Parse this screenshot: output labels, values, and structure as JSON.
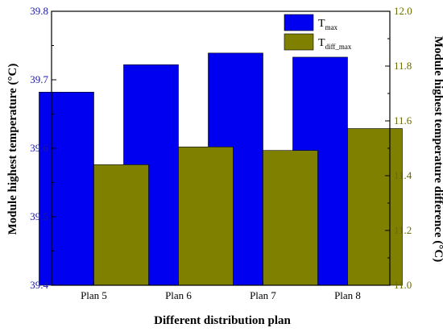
{
  "chart_data": {
    "type": "bar",
    "categories": [
      "Plan 5",
      "Plan 6",
      "Plan 7",
      "Plan 8"
    ],
    "xlabel": "Different distribution plan",
    "axes": {
      "left": {
        "label": "Module highest temperature (°C)",
        "range": [
          39.4,
          39.8
        ],
        "ticks": [
          "39.4",
          "39.5",
          "39.6",
          "39.7",
          "39.8"
        ],
        "color": "#1a1aa0"
      },
      "right": {
        "label": "Module highest temperature difference (°C)",
        "range": [
          11.0,
          12.0
        ],
        "ticks": [
          "11.0",
          "11.2",
          "11.4",
          "11.6",
          "11.8",
          "12.0"
        ],
        "color": "#6b6b00"
      }
    },
    "series": [
      {
        "name_main": "T",
        "name_sub": "max",
        "axis": "left",
        "color": "#0000f0",
        "values": [
          39.682,
          39.722,
          39.739,
          39.733
        ]
      },
      {
        "name_main": "T",
        "name_sub": "diff_max",
        "axis": "right",
        "color": "#808000",
        "values": [
          11.44,
          11.505,
          11.492,
          11.572
        ]
      }
    ],
    "legend": "top-right"
  }
}
